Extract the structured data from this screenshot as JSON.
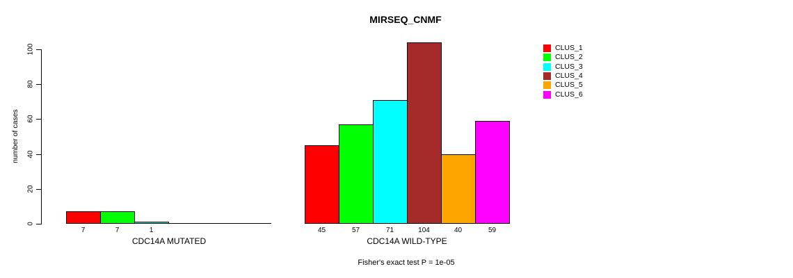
{
  "chart_data": {
    "type": "bar",
    "title": "MIRSEQ_CNMF",
    "ylabel": "number of cases",
    "xlabel": "",
    "ylim": [
      0,
      100
    ],
    "yticks": [
      0,
      20,
      40,
      60,
      80,
      100
    ],
    "grid": false,
    "legend_position": "top-right",
    "series": [
      {
        "name": "CLUS_1",
        "color": "#FF0000"
      },
      {
        "name": "CLUS_2",
        "color": "#00FF00"
      },
      {
        "name": "CLUS_3",
        "color": "#00FFFF"
      },
      {
        "name": "CLUS_4",
        "color": "#A52A2A"
      },
      {
        "name": "CLUS_5",
        "color": "#FFA500"
      },
      {
        "name": "CLUS_6",
        "color": "#FF00FF"
      }
    ],
    "groups": [
      {
        "label": "CDC14A MUTATED",
        "values": [
          7,
          7,
          1,
          0,
          0,
          0
        ]
      },
      {
        "label": "CDC14A WILD-TYPE",
        "values": [
          45,
          57,
          71,
          104,
          40,
          59
        ]
      }
    ],
    "bar_value_labels_shown": true,
    "annotation": "Fisher's exact test P = 1e-05"
  }
}
